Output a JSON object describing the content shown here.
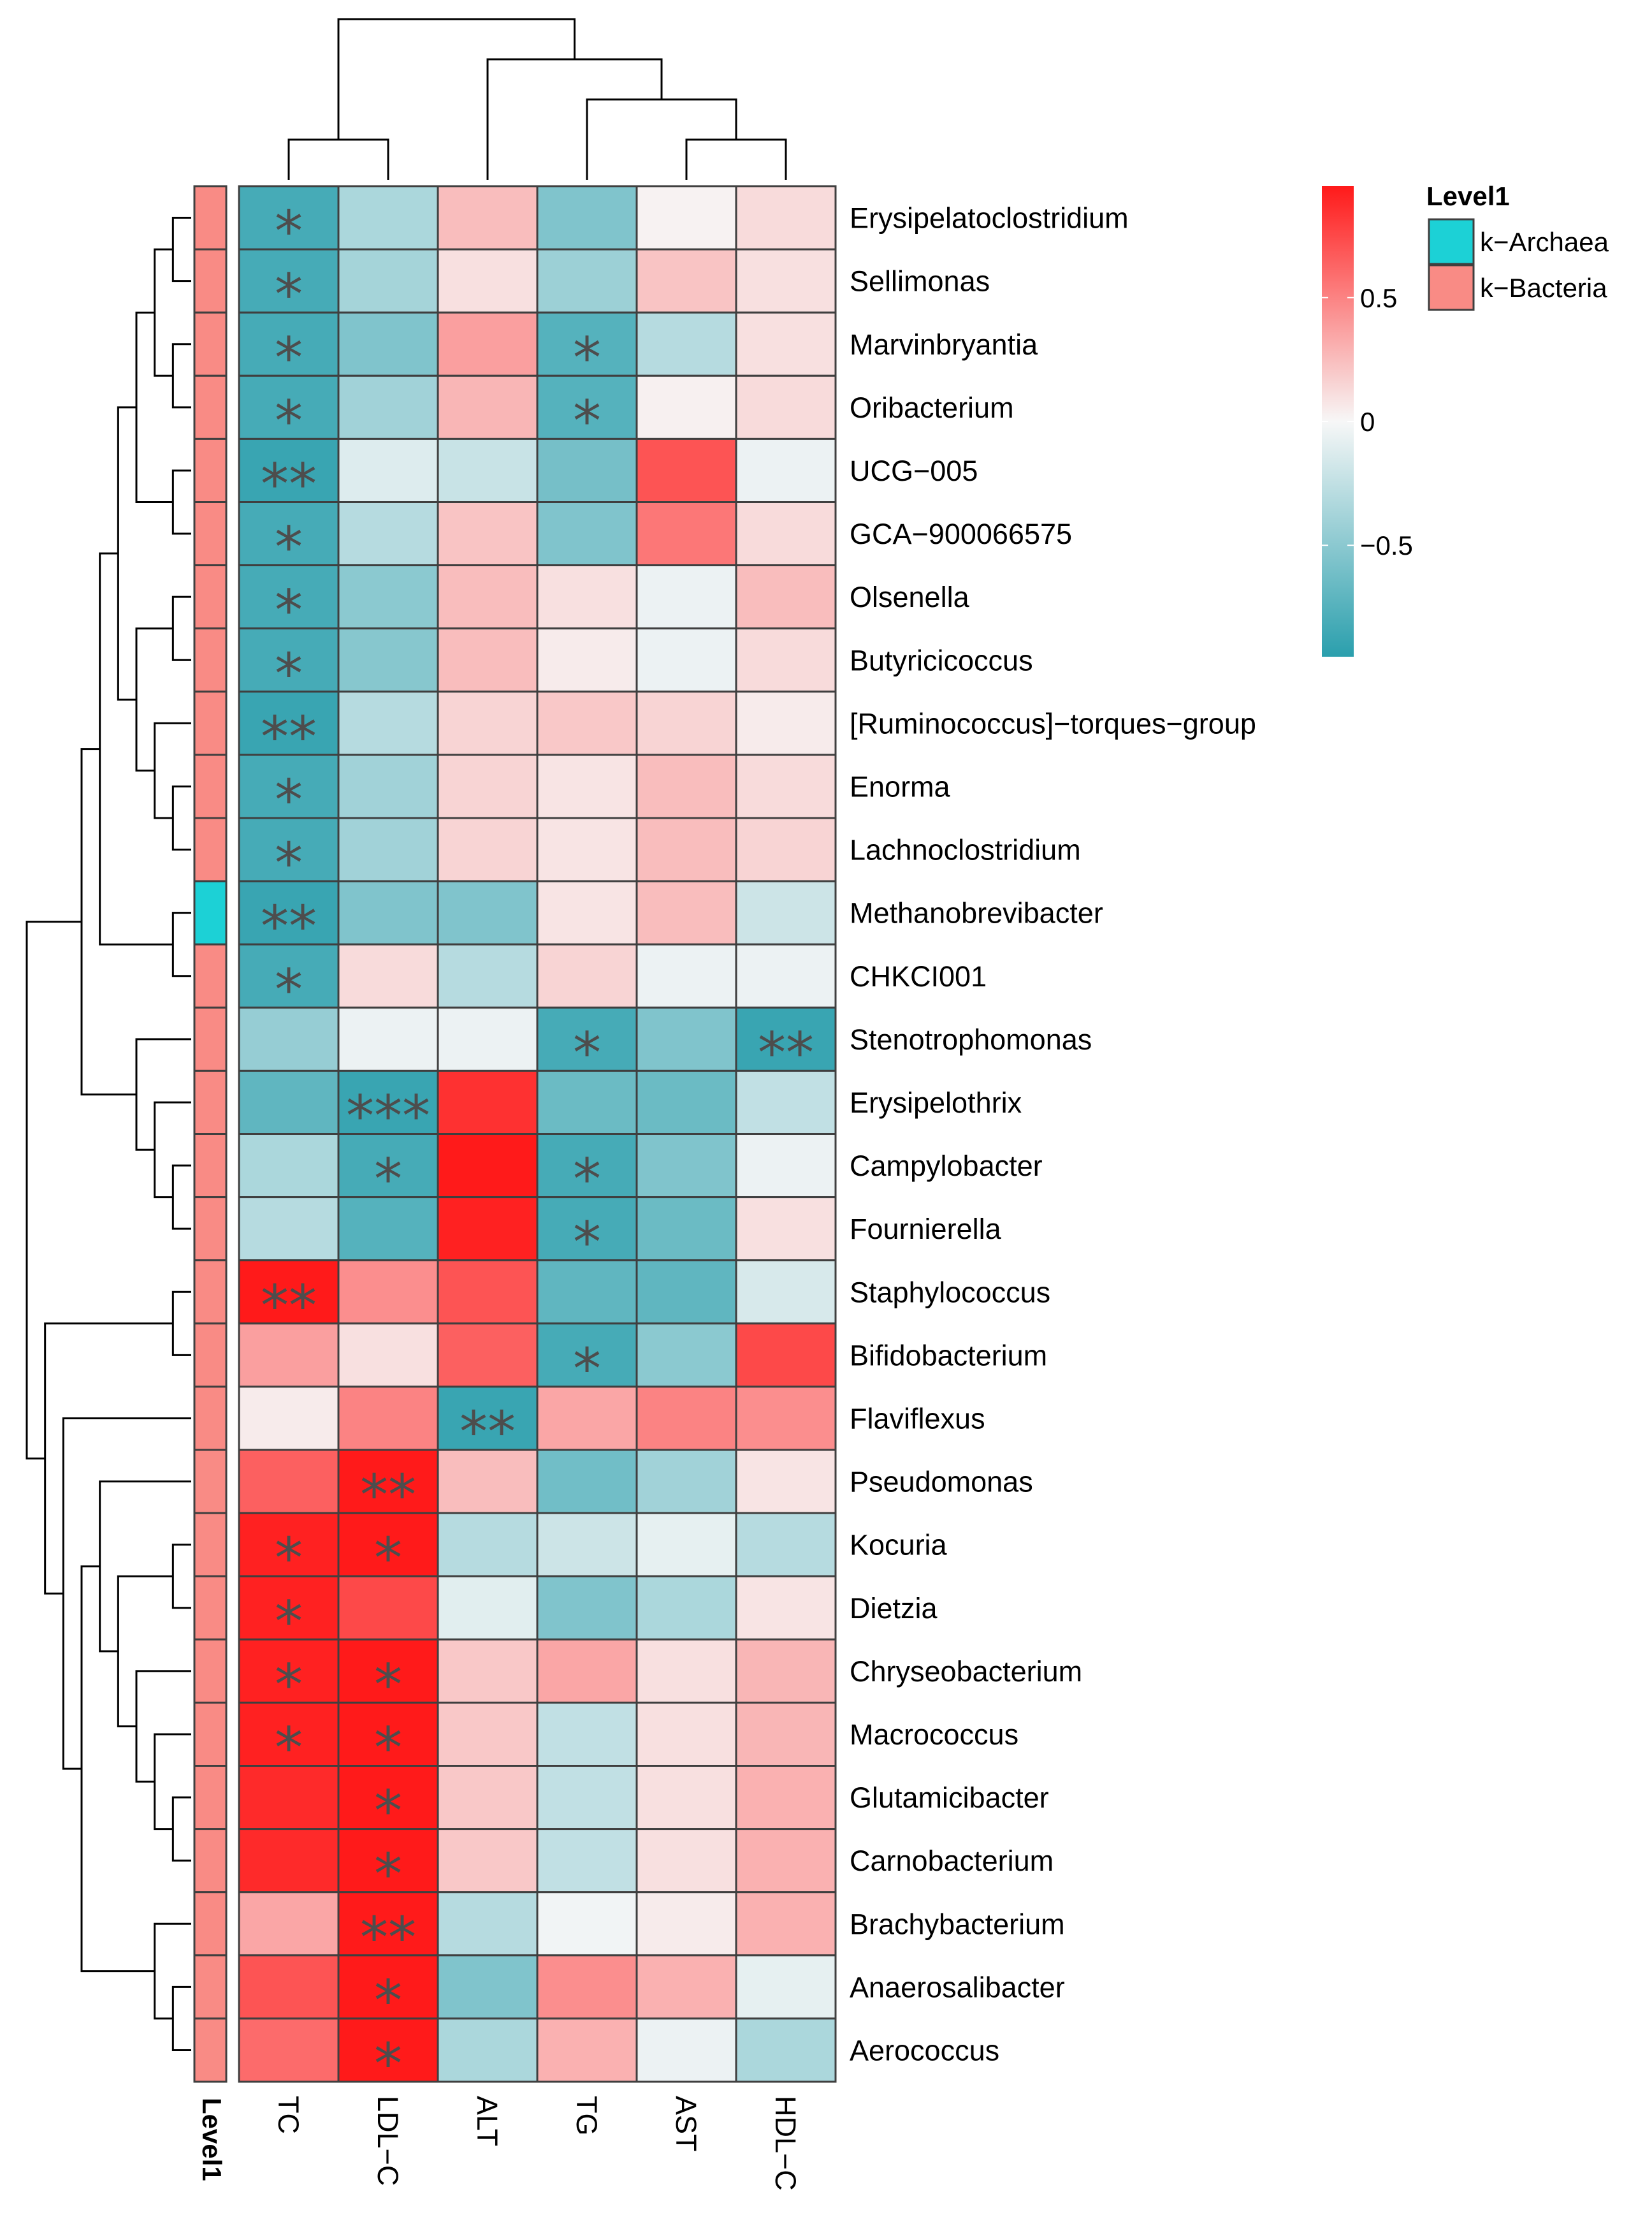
{
  "chart_data": {
    "type": "heatmap",
    "title": "",
    "columns": [
      "TC",
      "LDL−C",
      "ALT",
      "TG",
      "AST",
      "HDL−C"
    ],
    "rows": [
      "Erysipelatoclostridium",
      "Sellimonas",
      "Marvinbryantia",
      "Oribacterium",
      "UCG−005",
      "GCA−900066575",
      "Olsenella",
      "Butyricicoccus",
      "[Ruminococcus]−torques−group",
      "Enorma",
      "Lachnoclostridium",
      "Methanobrevibacter",
      "CHKCI001",
      "Stenotrophomonas",
      "Erysipelothrix",
      "Campylobacter",
      "Fournierella",
      "Staphylococcus",
      "Bifidobacterium",
      "Flaviflexus",
      "Pseudomonas",
      "Kocuria",
      "Dietzia",
      "Chryseobacterium",
      "Macrococcus",
      "Glutamicibacter",
      "Carnobacterium",
      "Brachybacterium",
      "Anaerosalibacter",
      "Aerococcus"
    ],
    "values": [
      [
        -0.82,
        -0.35,
        0.25,
        -0.55,
        0.02,
        0.12
      ],
      [
        -0.82,
        -0.38,
        0.1,
        -0.42,
        0.22,
        0.1
      ],
      [
        -0.82,
        -0.55,
        0.38,
        -0.75,
        -0.3,
        0.1
      ],
      [
        -0.82,
        -0.4,
        0.28,
        -0.75,
        0.03,
        0.12
      ],
      [
        -0.88,
        -0.12,
        -0.22,
        -0.6,
        0.7,
        -0.05
      ],
      [
        -0.82,
        -0.3,
        0.22,
        -0.55,
        0.55,
        0.12
      ],
      [
        -0.82,
        -0.5,
        0.25,
        0.1,
        -0.05,
        0.25
      ],
      [
        -0.82,
        -0.52,
        0.25,
        0.05,
        -0.05,
        0.12
      ],
      [
        -0.88,
        -0.3,
        0.15,
        0.2,
        0.15,
        0.05
      ],
      [
        -0.82,
        -0.4,
        0.15,
        0.08,
        0.25,
        0.12
      ],
      [
        -0.82,
        -0.4,
        0.15,
        0.08,
        0.25,
        0.15
      ],
      [
        -0.88,
        -0.55,
        -0.55,
        0.08,
        0.25,
        -0.2
      ],
      [
        -0.82,
        0.12,
        -0.3,
        0.15,
        -0.05,
        -0.05
      ],
      [
        -0.45,
        -0.05,
        -0.05,
        -0.82,
        -0.55,
        -0.88
      ],
      [
        -0.7,
        -0.88,
        0.85,
        -0.65,
        -0.65,
        -0.25
      ],
      [
        -0.35,
        -0.82,
        0.95,
        -0.82,
        -0.55,
        -0.05
      ],
      [
        -0.3,
        -0.75,
        0.92,
        -0.82,
        -0.65,
        0.1
      ],
      [
        0.95,
        0.45,
        0.7,
        -0.7,
        -0.7,
        -0.15
      ],
      [
        0.38,
        0.1,
        0.65,
        -0.82,
        -0.5,
        0.75
      ],
      [
        0.05,
        0.5,
        -0.88,
        0.35,
        0.5,
        0.45
      ],
      [
        0.65,
        0.95,
        0.25,
        -0.62,
        -0.4,
        0.08
      ],
      [
        0.92,
        0.95,
        -0.3,
        -0.2,
        -0.08,
        -0.3
      ],
      [
        0.92,
        0.75,
        -0.1,
        -0.55,
        -0.35,
        0.08
      ],
      [
        0.92,
        0.95,
        0.2,
        0.35,
        0.1,
        0.28
      ],
      [
        0.92,
        0.95,
        0.2,
        -0.25,
        0.1,
        0.28
      ],
      [
        0.88,
        0.95,
        0.2,
        -0.25,
        0.1,
        0.3
      ],
      [
        0.88,
        0.95,
        0.2,
        -0.25,
        0.1,
        0.3
      ],
      [
        0.35,
        0.95,
        -0.3,
        -0.03,
        0.05,
        0.3
      ],
      [
        0.7,
        0.95,
        -0.55,
        0.45,
        0.3,
        -0.08
      ],
      [
        0.6,
        0.95,
        -0.35,
        0.3,
        -0.05,
        -0.35
      ]
    ],
    "significance": [
      [
        "*",
        "",
        "",
        "",
        "",
        ""
      ],
      [
        "*",
        "",
        "",
        "",
        "",
        ""
      ],
      [
        "*",
        "",
        "",
        "*",
        "",
        ""
      ],
      [
        "*",
        "",
        "",
        "*",
        "",
        ""
      ],
      [
        "**",
        "",
        "",
        "",
        "",
        ""
      ],
      [
        "*",
        "",
        "",
        "",
        "",
        ""
      ],
      [
        "*",
        "",
        "",
        "",
        "",
        ""
      ],
      [
        "*",
        "",
        "",
        "",
        "",
        ""
      ],
      [
        "**",
        "",
        "",
        "",
        "",
        ""
      ],
      [
        "*",
        "",
        "",
        "",
        "",
        ""
      ],
      [
        "*",
        "",
        "",
        "",
        "",
        ""
      ],
      [
        "**",
        "",
        "",
        "",
        "",
        ""
      ],
      [
        "*",
        "",
        "",
        "",
        "",
        ""
      ],
      [
        "",
        "",
        "",
        "*",
        "",
        "**"
      ],
      [
        "",
        "***",
        "",
        "",
        "",
        ""
      ],
      [
        "",
        "*",
        "",
        "*",
        "",
        ""
      ],
      [
        "",
        "",
        "",
        "*",
        "",
        ""
      ],
      [
        "**",
        "",
        "",
        "",
        "",
        ""
      ],
      [
        "",
        "",
        "",
        "*",
        "",
        ""
      ],
      [
        "",
        "",
        "**",
        "",
        "",
        ""
      ],
      [
        "",
        "**",
        "",
        "",
        "",
        ""
      ],
      [
        "*",
        "*",
        "",
        "",
        "",
        ""
      ],
      [
        "*",
        "",
        "",
        "",
        "",
        ""
      ],
      [
        "*",
        "*",
        "",
        "",
        "",
        ""
      ],
      [
        "*",
        "*",
        "",
        "",
        "",
        ""
      ],
      [
        "",
        "*",
        "",
        "",
        "",
        ""
      ],
      [
        "",
        "*",
        "",
        "",
        "",
        ""
      ],
      [
        "",
        "**",
        "",
        "",
        "",
        ""
      ],
      [
        "",
        "*",
        "",
        "",
        "",
        ""
      ],
      [
        "",
        "*",
        "",
        "",
        "",
        ""
      ]
    ],
    "row_annotation": {
      "title": "Level1",
      "values": [
        "k−Bacteria",
        "k−Bacteria",
        "k−Bacteria",
        "k−Bacteria",
        "k−Bacteria",
        "k−Bacteria",
        "k−Bacteria",
        "k−Bacteria",
        "k−Bacteria",
        "k−Bacteria",
        "k−Bacteria",
        "k−Archaea",
        "k−Bacteria",
        "k−Bacteria",
        "k−Bacteria",
        "k−Bacteria",
        "k−Bacteria",
        "k−Bacteria",
        "k−Bacteria",
        "k−Bacteria",
        "k−Bacteria",
        "k−Bacteria",
        "k−Bacteria",
        "k−Bacteria",
        "k−Bacteria",
        "k−Bacteria",
        "k−Bacteria",
        "k−Bacteria",
        "k−Bacteria",
        "k−Bacteria"
      ],
      "legend": [
        {
          "label": "k−Archaea",
          "color": "#1cd1d6"
        },
        {
          "label": "k−Bacteria",
          "color": "#f98b85"
        }
      ]
    },
    "color_scale": {
      "min": -0.95,
      "max": 0.95,
      "low_color": "#2a9fad",
      "mid_color": "#f7f7f7",
      "high_color": "#ff1a1a",
      "ticks": [
        0.5,
        0,
        -0.5
      ],
      "tick_labels": [
        "0.5",
        "0",
        "−0.5"
      ]
    },
    "row_dendrogram": [
      [
        0,
        1
      ],
      [
        2,
        3
      ],
      [
        -1,
        -2
      ],
      [
        4,
        5
      ],
      [
        -3,
        -4
      ],
      [
        6,
        7
      ],
      [
        9,
        10
      ],
      [
        8,
        -7
      ],
      [
        -6,
        -8
      ],
      [
        -5,
        -9
      ],
      [
        11,
        12
      ],
      [
        -10,
        -11
      ],
      [
        15,
        16
      ],
      [
        14,
        -13
      ],
      [
        13,
        -14
      ],
      [
        -12,
        -15
      ],
      [
        17,
        18
      ],
      [
        25,
        26
      ],
      [
        24,
        -18
      ],
      [
        23,
        -19
      ],
      [
        21,
        22
      ],
      [
        -20,
        -21
      ],
      [
        20,
        -22
      ],
      [
        28,
        29
      ],
      [
        27,
        -24
      ],
      [
        -23,
        -25
      ],
      [
        19,
        -26
      ],
      [
        -17,
        -27
      ],
      [
        -16,
        -28
      ]
    ],
    "col_dendrogram": [
      [
        4,
        5
      ],
      [
        3,
        -1
      ],
      [
        0,
        1
      ],
      [
        2,
        -2
      ],
      [
        -3,
        -4
      ]
    ]
  }
}
